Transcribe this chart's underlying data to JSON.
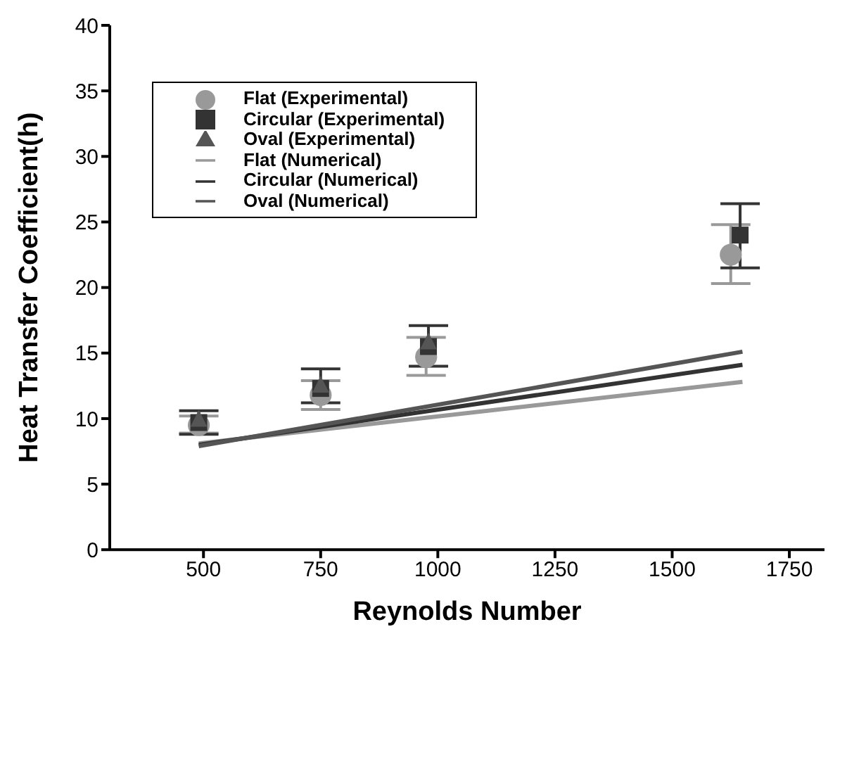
{
  "chart_data": {
    "type": "scatter",
    "xlabel": "Reynolds Number",
    "ylabel": "Heat Transfer Coefficient(h)",
    "xlim": [
      300,
      1825
    ],
    "xticks": [
      500,
      750,
      1000,
      1250,
      1500,
      1750
    ],
    "ylim": [
      0,
      40
    ],
    "yticks": [
      0,
      5,
      10,
      15,
      20,
      25,
      30,
      35,
      40
    ],
    "grid": false,
    "legend": "top left",
    "series": [
      {
        "name": "Flat (Experimental)",
        "type": "scatter",
        "marker": "circle",
        "color": "#999999",
        "x": [
          490,
          750,
          975,
          1625
        ],
        "values": [
          9.5,
          11.8,
          14.7,
          22.5
        ],
        "errors": [
          [
            8.9,
            10.2
          ],
          [
            10.7,
            12.9
          ],
          [
            13.3,
            16.2
          ],
          [
            20.3,
            24.8
          ]
        ]
      },
      {
        "name": "Circular (Experimental)",
        "type": "scatter",
        "marker": "square",
        "color": "#333333",
        "x": [
          490,
          750,
          980,
          1645
        ],
        "values": [
          9.7,
          12.3,
          15.5,
          24.0
        ],
        "errors": [
          [
            8.8,
            10.6
          ],
          [
            11.2,
            13.8
          ],
          [
            14.0,
            17.1
          ],
          [
            21.5,
            26.4
          ]
        ]
      },
      {
        "name": "Oval (Experimental)",
        "type": "scatter",
        "marker": "triangle",
        "color": "#555555",
        "x": [
          490,
          750,
          980
        ],
        "values": [
          9.9,
          12.5,
          15.8
        ]
      },
      {
        "name": "Flat (Numerical)",
        "type": "line",
        "marker": "none",
        "color": "#999999",
        "x": [
          490,
          1650
        ],
        "values": [
          8.1,
          12.8
        ]
      },
      {
        "name": "Circular (Numerical)",
        "type": "line",
        "marker": "none",
        "color": "#333333",
        "x": [
          490,
          1650
        ],
        "values": [
          8.0,
          14.1
        ]
      },
      {
        "name": "Oval (Numerical)",
        "type": "line",
        "marker": "none",
        "color": "#555555",
        "x": [
          490,
          1650
        ],
        "values": [
          7.9,
          15.1
        ]
      }
    ]
  }
}
